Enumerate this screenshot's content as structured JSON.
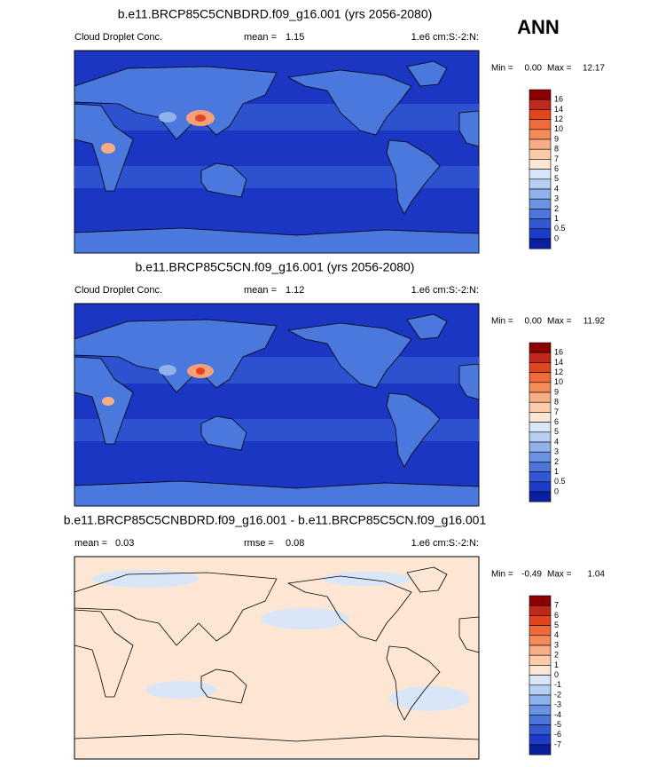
{
  "season": "ANN",
  "panels": [
    {
      "title": "b.e11.BRCP85C5CNBDRD.f09_g16.001 (yrs 2056-2080)",
      "left": {
        "text": "Cloud Droplet Conc."
      },
      "middle": {
        "label": "mean =",
        "value": "1.15"
      },
      "units": "1.e6 cm:S:-2:N:",
      "min_label": "Min =",
      "min": "0.00",
      "max_label": "Max =",
      "max": "12.17",
      "colorbar": {
        "labels": [
          "16",
          "14",
          "12",
          "10",
          "9",
          "8",
          "7",
          "6",
          "5",
          "4",
          "3",
          "2",
          "1",
          "0.5",
          "0"
        ],
        "colors": [
          "#8b0000",
          "#c0281c",
          "#e0451e",
          "#f06a3a",
          "#f68b5a",
          "#f9ad85",
          "#fcccaa",
          "#fde6d4",
          "#d8e6f8",
          "#b7cff2",
          "#8fb2eb",
          "#6b93e3",
          "#4c76db",
          "#3358d4",
          "#1c3cc9",
          "#0a1fa0"
        ]
      }
    },
    {
      "title": "b.e11.BRCP85C5CN.f09_g16.001 (yrs 2056-2080)",
      "left": {
        "text": "Cloud Droplet Conc."
      },
      "middle": {
        "label": "mean =",
        "value": "1.12"
      },
      "units": "1.e6 cm:S:-2:N:",
      "min_label": "Min =",
      "min": "0.00",
      "max_label": "Max =",
      "max": "11.92",
      "colorbar": {
        "labels": [
          "16",
          "14",
          "12",
          "10",
          "9",
          "8",
          "7",
          "6",
          "5",
          "4",
          "3",
          "2",
          "1",
          "0.5",
          "0"
        ],
        "colors": [
          "#8b0000",
          "#c0281c",
          "#e0451e",
          "#f06a3a",
          "#f68b5a",
          "#f9ad85",
          "#fcccaa",
          "#fde6d4",
          "#d8e6f8",
          "#b7cff2",
          "#8fb2eb",
          "#6b93e3",
          "#4c76db",
          "#3358d4",
          "#1c3cc9",
          "#0a1fa0"
        ]
      }
    },
    {
      "title": "b.e11.BRCP85C5CNBDRD.f09_g16.001 - b.e11.BRCP85C5CN.f09_g16.001",
      "left": {
        "label": "mean =",
        "value": "0.03"
      },
      "middle": {
        "label": "rmse =",
        "value": "0.08"
      },
      "units": "1.e6 cm:S:-2:N:",
      "min_label": "Min =",
      "min": "-0.49",
      "max_label": "Max =",
      "max": "1.04",
      "colorbar": {
        "labels": [
          "7",
          "6",
          "5",
          "4",
          "3",
          "2",
          "1",
          "0",
          "-1",
          "-2",
          "-3",
          "-4",
          "-5",
          "-6",
          "-7"
        ],
        "colors": [
          "#8b0000",
          "#c0281c",
          "#e0451e",
          "#f06a3a",
          "#f68b5a",
          "#f9ad85",
          "#fcccaa",
          "#fde6d4",
          "#d8e6f8",
          "#b7cff2",
          "#8fb2eb",
          "#6b93e3",
          "#4c76db",
          "#3358d4",
          "#1c3cc9",
          "#0a1fa0"
        ]
      }
    }
  ]
}
